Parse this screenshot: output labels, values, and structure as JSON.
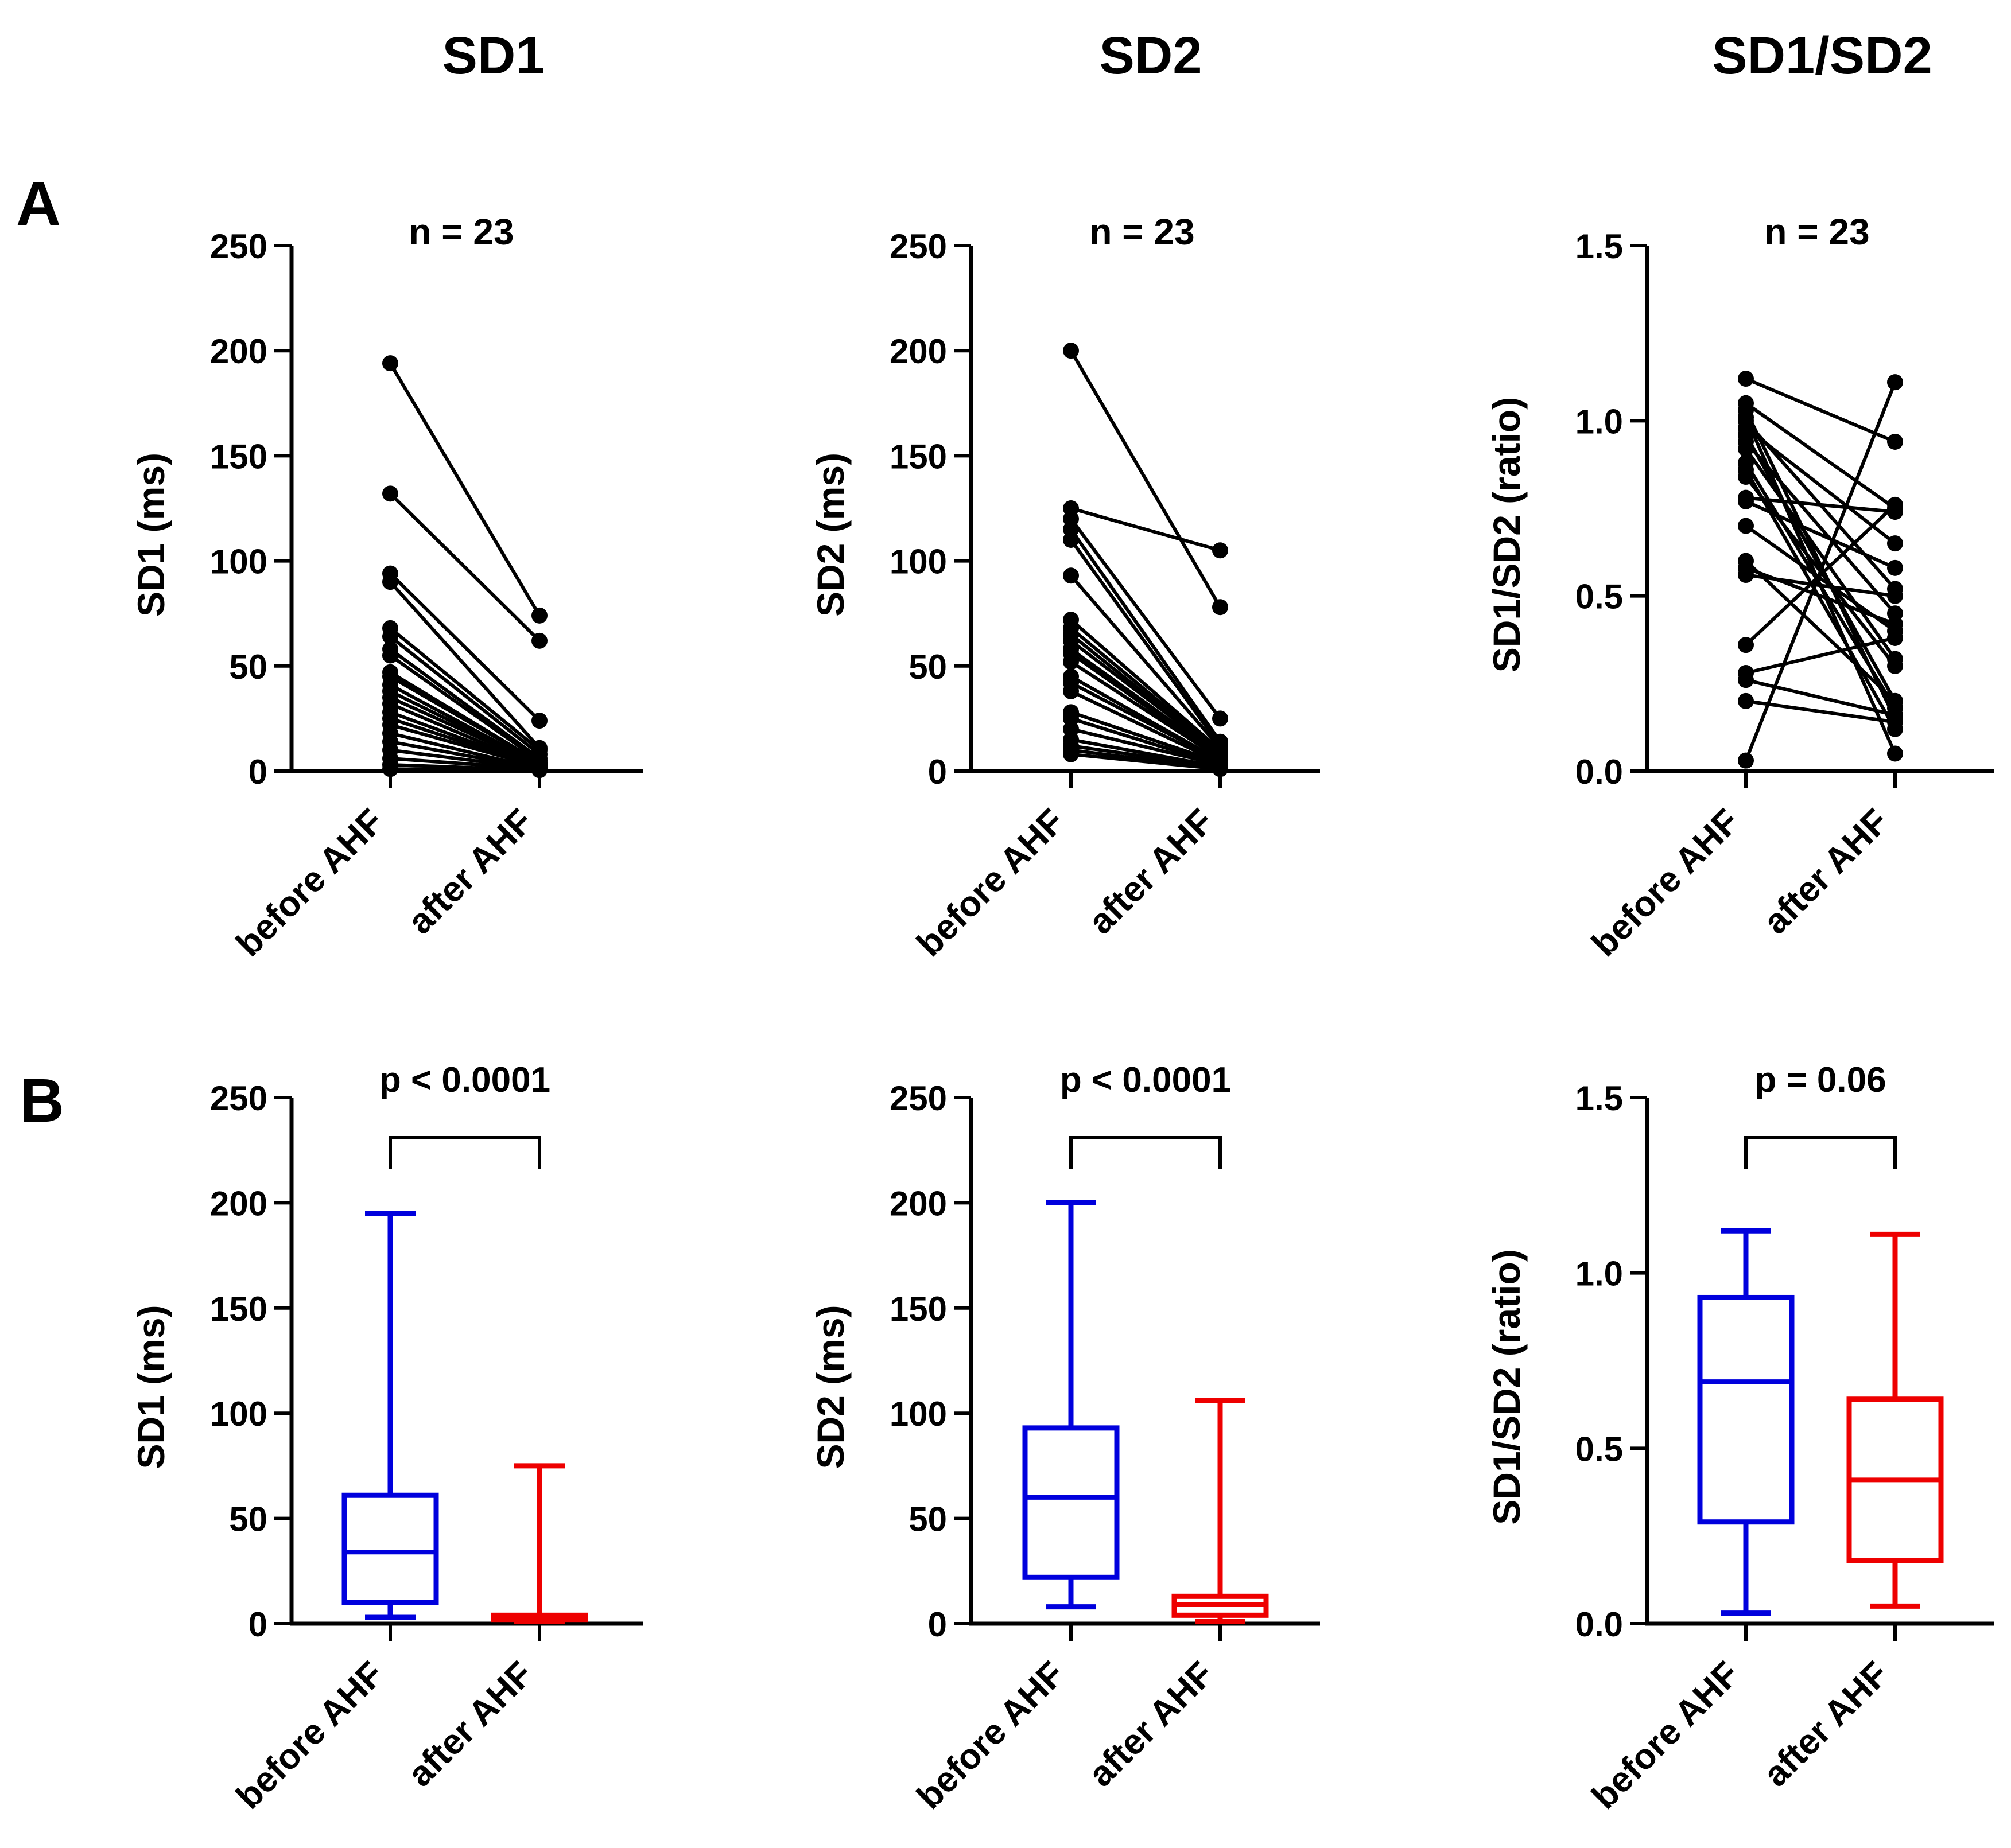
{
  "figure": {
    "column_titles": [
      "SD1",
      "SD2",
      "SD1/SD2"
    ],
    "row_labels": [
      "A",
      "B"
    ]
  },
  "colors": {
    "axis": "#000000",
    "lines": "#000000",
    "before": "#0000dd",
    "after": "#ee0000"
  },
  "chart_data": [
    {
      "type": "line",
      "panel": "A",
      "column": 0,
      "title": "n = 23",
      "ylabel": "SD1 (ms)",
      "categories": [
        "before AHF",
        "after AHF"
      ],
      "ylim": [
        0,
        250
      ],
      "yticks": [
        0,
        50,
        100,
        150,
        200,
        250
      ],
      "ytick_labels": [
        "0",
        "50",
        "100",
        "150",
        "200",
        "250"
      ],
      "pairs": [
        [
          194,
          74
        ],
        [
          132,
          62
        ],
        [
          94,
          24
        ],
        [
          90,
          11
        ],
        [
          68,
          10
        ],
        [
          64,
          8
        ],
        [
          58,
          6
        ],
        [
          55,
          5
        ],
        [
          47,
          4
        ],
        [
          45,
          4
        ],
        [
          41,
          3
        ],
        [
          38,
          3
        ],
        [
          35,
          3
        ],
        [
          32,
          2
        ],
        [
          28,
          2
        ],
        [
          25,
          2
        ],
        [
          22,
          2
        ],
        [
          18,
          1
        ],
        [
          14,
          1
        ],
        [
          10,
          1
        ],
        [
          6,
          1
        ],
        [
          3,
          0.5
        ],
        [
          1,
          0.5
        ]
      ]
    },
    {
      "type": "line",
      "panel": "A",
      "column": 1,
      "title": "n = 23",
      "ylabel": "SD2 (ms)",
      "categories": [
        "before AHF",
        "after AHF"
      ],
      "ylim": [
        0,
        250
      ],
      "yticks": [
        0,
        50,
        100,
        150,
        200,
        250
      ],
      "ytick_labels": [
        "0",
        "50",
        "100",
        "150",
        "200",
        "250"
      ],
      "pairs": [
        [
          200,
          78
        ],
        [
          125,
          105
        ],
        [
          120,
          25
        ],
        [
          115,
          14
        ],
        [
          110,
          12
        ],
        [
          93,
          11
        ],
        [
          72,
          10
        ],
        [
          68,
          9
        ],
        [
          65,
          8
        ],
        [
          62,
          8
        ],
        [
          58,
          7
        ],
        [
          56,
          6
        ],
        [
          52,
          6
        ],
        [
          45,
          5
        ],
        [
          42,
          5
        ],
        [
          38,
          4
        ],
        [
          28,
          4
        ],
        [
          25,
          3
        ],
        [
          20,
          3
        ],
        [
          15,
          2
        ],
        [
          12,
          2
        ],
        [
          10,
          1
        ],
        [
          8,
          1
        ]
      ]
    },
    {
      "type": "line",
      "panel": "A",
      "column": 2,
      "title": "n = 23",
      "ylabel": "SD1/SD2 (ratio)",
      "categories": [
        "before AHF",
        "after AHF"
      ],
      "ylim": [
        0,
        1.5
      ],
      "yticks": [
        0,
        0.5,
        1.0,
        1.5
      ],
      "ytick_labels": [
        "0.0",
        "0.5",
        "1.0",
        "1.5"
      ],
      "pairs": [
        [
          1.12,
          0.94
        ],
        [
          1.05,
          0.75
        ],
        [
          1.03,
          0.15
        ],
        [
          1.01,
          0.05
        ],
        [
          1.0,
          0.52
        ],
        [
          0.98,
          0.65
        ],
        [
          0.96,
          0.2
        ],
        [
          0.94,
          0.45
        ],
        [
          0.92,
          0.32
        ],
        [
          0.88,
          0.18
        ],
        [
          0.86,
          0.12
        ],
        [
          0.84,
          0.3
        ],
        [
          0.78,
          0.74
        ],
        [
          0.77,
          0.58
        ],
        [
          0.7,
          0.4
        ],
        [
          0.6,
          0.2
        ],
        [
          0.58,
          0.42
        ],
        [
          0.56,
          0.5
        ],
        [
          0.36,
          0.76
        ],
        [
          0.28,
          0.38
        ],
        [
          0.26,
          0.16
        ],
        [
          0.2,
          0.14
        ],
        [
          0.03,
          1.11
        ]
      ]
    },
    {
      "type": "box",
      "panel": "B",
      "column": 0,
      "title": "p < 0.0001",
      "ylabel": "SD1 (ms)",
      "categories": [
        "before AHF",
        "after AHF"
      ],
      "ylim": [
        0,
        250
      ],
      "yticks": [
        0,
        50,
        100,
        150,
        200,
        250
      ],
      "ytick_labels": [
        "0",
        "50",
        "100",
        "150",
        "200",
        "250"
      ],
      "boxes": [
        {
          "min": 3,
          "q1": 10,
          "median": 34,
          "q3": 61,
          "max": 195
        },
        {
          "min": 1,
          "q1": 2,
          "median": 3,
          "q3": 4,
          "max": 75
        }
      ]
    },
    {
      "type": "box",
      "panel": "B",
      "column": 1,
      "title": "p < 0.0001",
      "ylabel": "SD2 (ms)",
      "categories": [
        "before AHF",
        "after AHF"
      ],
      "ylim": [
        0,
        250
      ],
      "yticks": [
        0,
        50,
        100,
        150,
        200,
        250
      ],
      "ytick_labels": [
        "0",
        "50",
        "100",
        "150",
        "200",
        "250"
      ],
      "boxes": [
        {
          "min": 8,
          "q1": 22,
          "median": 60,
          "q3": 93,
          "max": 200
        },
        {
          "min": 1,
          "q1": 4,
          "median": 9,
          "q3": 13,
          "max": 106
        }
      ]
    },
    {
      "type": "box",
      "panel": "B",
      "column": 2,
      "title": "p = 0.06",
      "ylabel": "SD1/SD2 (ratio)",
      "categories": [
        "before AHF",
        "after AHF"
      ],
      "ylim": [
        0,
        1.5
      ],
      "yticks": [
        0,
        0.5,
        1.0,
        1.5
      ],
      "ytick_labels": [
        "0.0",
        "0.5",
        "1.0",
        "1.5"
      ],
      "boxes": [
        {
          "min": 0.03,
          "q1": 0.29,
          "median": 0.69,
          "q3": 0.93,
          "max": 1.12
        },
        {
          "min": 0.05,
          "q1": 0.18,
          "median": 0.41,
          "q3": 0.64,
          "max": 1.11
        }
      ]
    }
  ]
}
